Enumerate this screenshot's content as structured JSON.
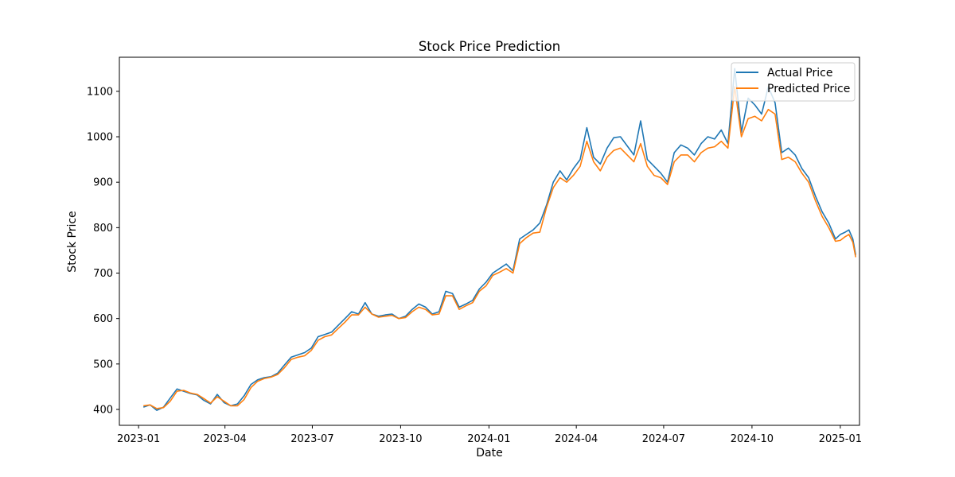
{
  "chart_data": {
    "type": "line",
    "title": "Stock Price Prediction",
    "xlabel": "Date",
    "ylabel": "Stock Price",
    "xlim": [
      "2022-12-12",
      "2025-01-21"
    ],
    "ylim": [
      365,
      1175
    ],
    "x_ticks": [
      "2023-01",
      "2023-04",
      "2023-07",
      "2023-10",
      "2024-01",
      "2024-04",
      "2024-07",
      "2024-10",
      "2025-01"
    ],
    "y_ticks": [
      400,
      500,
      600,
      700,
      800,
      900,
      1000,
      1100
    ],
    "grid": false,
    "legend_position": "top-right",
    "series": [
      {
        "name": "Actual Price",
        "color": "#1f77b4",
        "points": [
          [
            "2023-01-06",
            405
          ],
          [
            "2023-01-13",
            410
          ],
          [
            "2023-01-20",
            398
          ],
          [
            "2023-01-27",
            405
          ],
          [
            "2023-02-03",
            425
          ],
          [
            "2023-02-10",
            445
          ],
          [
            "2023-02-17",
            440
          ],
          [
            "2023-02-24",
            435
          ],
          [
            "2023-03-03",
            432
          ],
          [
            "2023-03-10",
            420
          ],
          [
            "2023-03-17",
            412
          ],
          [
            "2023-03-24",
            433
          ],
          [
            "2023-03-31",
            415
          ],
          [
            "2023-04-07",
            408
          ],
          [
            "2023-04-14",
            412
          ],
          [
            "2023-04-21",
            430
          ],
          [
            "2023-04-28",
            455
          ],
          [
            "2023-05-05",
            465
          ],
          [
            "2023-05-12",
            470
          ],
          [
            "2023-05-19",
            472
          ],
          [
            "2023-05-26",
            480
          ],
          [
            "2023-06-02",
            498
          ],
          [
            "2023-06-09",
            515
          ],
          [
            "2023-06-16",
            520
          ],
          [
            "2023-06-23",
            525
          ],
          [
            "2023-06-30",
            535
          ],
          [
            "2023-07-07",
            560
          ],
          [
            "2023-07-14",
            565
          ],
          [
            "2023-07-21",
            570
          ],
          [
            "2023-07-28",
            585
          ],
          [
            "2023-08-04",
            600
          ],
          [
            "2023-08-11",
            615
          ],
          [
            "2023-08-18",
            610
          ],
          [
            "2023-08-25",
            635
          ],
          [
            "2023-09-01",
            610
          ],
          [
            "2023-09-08",
            605
          ],
          [
            "2023-09-15",
            608
          ],
          [
            "2023-09-22",
            610
          ],
          [
            "2023-09-29",
            600
          ],
          [
            "2023-10-06",
            605
          ],
          [
            "2023-10-13",
            620
          ],
          [
            "2023-10-20",
            632
          ],
          [
            "2023-10-27",
            625
          ],
          [
            "2023-11-03",
            610
          ],
          [
            "2023-11-10",
            615
          ],
          [
            "2023-11-17",
            660
          ],
          [
            "2023-11-24",
            655
          ],
          [
            "2023-12-01",
            625
          ],
          [
            "2023-12-08",
            632
          ],
          [
            "2023-12-15",
            640
          ],
          [
            "2023-12-22",
            665
          ],
          [
            "2023-12-29",
            680
          ],
          [
            "2024-01-05",
            700
          ],
          [
            "2024-01-12",
            710
          ],
          [
            "2024-01-19",
            720
          ],
          [
            "2024-01-26",
            705
          ],
          [
            "2024-02-02",
            775
          ],
          [
            "2024-02-09",
            785
          ],
          [
            "2024-02-16",
            795
          ],
          [
            "2024-02-23",
            810
          ],
          [
            "2024-03-01",
            850
          ],
          [
            "2024-03-08",
            900
          ],
          [
            "2024-03-15",
            925
          ],
          [
            "2024-03-22",
            905
          ],
          [
            "2024-03-29",
            930
          ],
          [
            "2024-04-05",
            950
          ],
          [
            "2024-04-12",
            1020
          ],
          [
            "2024-04-19",
            955
          ],
          [
            "2024-04-26",
            940
          ],
          [
            "2024-05-03",
            975
          ],
          [
            "2024-05-10",
            998
          ],
          [
            "2024-05-17",
            1000
          ],
          [
            "2024-05-24",
            980
          ],
          [
            "2024-05-31",
            960
          ],
          [
            "2024-06-07",
            1035
          ],
          [
            "2024-06-14",
            950
          ],
          [
            "2024-06-21",
            935
          ],
          [
            "2024-06-28",
            920
          ],
          [
            "2024-07-05",
            900
          ],
          [
            "2024-07-12",
            965
          ],
          [
            "2024-07-19",
            982
          ],
          [
            "2024-07-26",
            975
          ],
          [
            "2024-08-02",
            960
          ],
          [
            "2024-08-09",
            985
          ],
          [
            "2024-08-16",
            1000
          ],
          [
            "2024-08-23",
            995
          ],
          [
            "2024-08-30",
            1015
          ],
          [
            "2024-09-06",
            985
          ],
          [
            "2024-09-13",
            1150
          ],
          [
            "2024-09-20",
            1010
          ],
          [
            "2024-09-27",
            1085
          ],
          [
            "2024-10-04",
            1070
          ],
          [
            "2024-10-11",
            1050
          ],
          [
            "2024-10-18",
            1110
          ],
          [
            "2024-10-25",
            1075
          ],
          [
            "2024-11-01",
            965
          ],
          [
            "2024-11-08",
            975
          ],
          [
            "2024-11-15",
            960
          ],
          [
            "2024-11-22",
            930
          ],
          [
            "2024-11-29",
            910
          ],
          [
            "2024-12-06",
            870
          ],
          [
            "2024-12-13",
            835
          ],
          [
            "2024-12-20",
            810
          ],
          [
            "2024-12-27",
            775
          ],
          [
            "2025-01-01",
            785
          ],
          [
            "2025-01-06",
            790
          ],
          [
            "2025-01-10",
            795
          ],
          [
            "2025-01-14",
            775
          ],
          [
            "2025-01-17",
            740
          ]
        ]
      },
      {
        "name": "Predicted Price",
        "color": "#ff7f0e",
        "points": [
          [
            "2023-01-06",
            408
          ],
          [
            "2023-01-13",
            410
          ],
          [
            "2023-01-20",
            402
          ],
          [
            "2023-01-27",
            404
          ],
          [
            "2023-02-03",
            418
          ],
          [
            "2023-02-10",
            440
          ],
          [
            "2023-02-17",
            442
          ],
          [
            "2023-02-24",
            436
          ],
          [
            "2023-03-03",
            433
          ],
          [
            "2023-03-10",
            424
          ],
          [
            "2023-03-17",
            414
          ],
          [
            "2023-03-24",
            428
          ],
          [
            "2023-03-31",
            418
          ],
          [
            "2023-04-07",
            408
          ],
          [
            "2023-04-14",
            408
          ],
          [
            "2023-04-21",
            422
          ],
          [
            "2023-04-28",
            448
          ],
          [
            "2023-05-05",
            462
          ],
          [
            "2023-05-12",
            468
          ],
          [
            "2023-05-19",
            471
          ],
          [
            "2023-05-26",
            477
          ],
          [
            "2023-06-02",
            492
          ],
          [
            "2023-06-09",
            510
          ],
          [
            "2023-06-16",
            515
          ],
          [
            "2023-06-23",
            518
          ],
          [
            "2023-06-30",
            530
          ],
          [
            "2023-07-07",
            552
          ],
          [
            "2023-07-14",
            560
          ],
          [
            "2023-07-21",
            564
          ],
          [
            "2023-07-28",
            578
          ],
          [
            "2023-08-04",
            592
          ],
          [
            "2023-08-11",
            608
          ],
          [
            "2023-08-18",
            608
          ],
          [
            "2023-08-25",
            625
          ],
          [
            "2023-09-01",
            610
          ],
          [
            "2023-09-08",
            603
          ],
          [
            "2023-09-15",
            605
          ],
          [
            "2023-09-22",
            607
          ],
          [
            "2023-09-29",
            600
          ],
          [
            "2023-10-06",
            602
          ],
          [
            "2023-10-13",
            615
          ],
          [
            "2023-10-20",
            625
          ],
          [
            "2023-10-27",
            620
          ],
          [
            "2023-11-03",
            608
          ],
          [
            "2023-11-10",
            610
          ],
          [
            "2023-11-17",
            650
          ],
          [
            "2023-11-24",
            650
          ],
          [
            "2023-12-01",
            620
          ],
          [
            "2023-12-08",
            628
          ],
          [
            "2023-12-15",
            635
          ],
          [
            "2023-12-22",
            660
          ],
          [
            "2023-12-29",
            672
          ],
          [
            "2024-01-05",
            695
          ],
          [
            "2024-01-12",
            702
          ],
          [
            "2024-01-19",
            710
          ],
          [
            "2024-01-26",
            700
          ],
          [
            "2024-02-02",
            765
          ],
          [
            "2024-02-09",
            778
          ],
          [
            "2024-02-16",
            788
          ],
          [
            "2024-02-23",
            790
          ],
          [
            "2024-03-01",
            845
          ],
          [
            "2024-03-08",
            888
          ],
          [
            "2024-03-15",
            910
          ],
          [
            "2024-03-22",
            900
          ],
          [
            "2024-03-29",
            915
          ],
          [
            "2024-04-05",
            935
          ],
          [
            "2024-04-12",
            990
          ],
          [
            "2024-04-19",
            945
          ],
          [
            "2024-04-26",
            925
          ],
          [
            "2024-05-03",
            955
          ],
          [
            "2024-05-10",
            970
          ],
          [
            "2024-05-17",
            975
          ],
          [
            "2024-05-24",
            960
          ],
          [
            "2024-05-31",
            945
          ],
          [
            "2024-06-07",
            985
          ],
          [
            "2024-06-14",
            935
          ],
          [
            "2024-06-21",
            915
          ],
          [
            "2024-06-28",
            910
          ],
          [
            "2024-07-05",
            895
          ],
          [
            "2024-07-12",
            945
          ],
          [
            "2024-07-19",
            960
          ],
          [
            "2024-07-26",
            960
          ],
          [
            "2024-08-02",
            945
          ],
          [
            "2024-08-09",
            965
          ],
          [
            "2024-08-16",
            975
          ],
          [
            "2024-08-23",
            978
          ],
          [
            "2024-08-30",
            990
          ],
          [
            "2024-09-06",
            975
          ],
          [
            "2024-09-13",
            1110
          ],
          [
            "2024-09-20",
            1000
          ],
          [
            "2024-09-27",
            1040
          ],
          [
            "2024-10-04",
            1045
          ],
          [
            "2024-10-11",
            1035
          ],
          [
            "2024-10-18",
            1060
          ],
          [
            "2024-10-25",
            1050
          ],
          [
            "2024-11-01",
            950
          ],
          [
            "2024-11-08",
            955
          ],
          [
            "2024-11-15",
            945
          ],
          [
            "2024-11-22",
            920
          ],
          [
            "2024-11-29",
            900
          ],
          [
            "2024-12-06",
            860
          ],
          [
            "2024-12-13",
            825
          ],
          [
            "2024-12-20",
            800
          ],
          [
            "2024-12-27",
            770
          ],
          [
            "2025-01-01",
            772
          ],
          [
            "2025-01-06",
            780
          ],
          [
            "2025-01-10",
            785
          ],
          [
            "2025-01-14",
            768
          ],
          [
            "2025-01-17",
            735
          ]
        ]
      }
    ]
  }
}
